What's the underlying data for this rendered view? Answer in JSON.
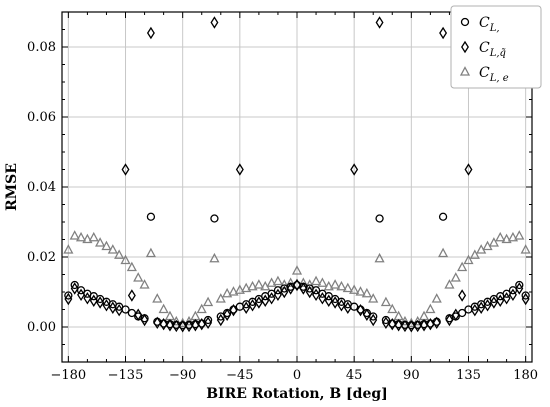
{
  "chart_data": {
    "type": "scatter",
    "xlabel": "BIRE Rotation,  B [deg]",
    "ylabel": "RMSE",
    "xlim": [
      -185,
      185
    ],
    "ylim": [
      -0.01,
      0.09
    ],
    "xticks": [
      -180,
      -135,
      -90,
      -45,
      0,
      45,
      90,
      135,
      180
    ],
    "xtick_labels": [
      "−180",
      "−135",
      "−90",
      "−45",
      "0",
      "45",
      "90",
      "135",
      "180"
    ],
    "yticks": [
      0.0,
      0.02,
      0.04,
      0.06,
      0.08
    ],
    "ytick_labels": [
      "0.00",
      "0.02",
      "0.04",
      "0.06",
      "0.08"
    ],
    "grid": true,
    "legend_position": "top-right",
    "series": [
      {
        "name": "C_L,",
        "legend_main": "C",
        "legend_sub": "L,",
        "marker": "circle",
        "color": "#000000",
        "x": [
          -180,
          -175,
          -170,
          -165,
          -160,
          -155,
          -150,
          -145,
          -140,
          -135,
          -130,
          -125,
          -120,
          -115,
          -110,
          -105,
          -100,
          -95,
          -90,
          -85,
          -80,
          -75,
          -70,
          -65,
          -60,
          -55,
          -50,
          -45,
          -40,
          -35,
          -30,
          -25,
          -20,
          -15,
          -10,
          -5,
          0,
          5,
          10,
          15,
          20,
          25,
          30,
          35,
          40,
          45,
          50,
          55,
          60,
          65,
          70,
          75,
          80,
          85,
          90,
          95,
          100,
          105,
          110,
          115,
          120,
          125,
          130,
          135,
          140,
          145,
          150,
          155,
          160,
          165,
          170,
          175,
          180
        ],
        "y": [
          0.009,
          0.012,
          0.0105,
          0.0095,
          0.0088,
          0.008,
          0.0072,
          0.0065,
          0.0058,
          0.005,
          0.004,
          0.003,
          0.0025,
          0.0315,
          0.0015,
          0.001,
          0.0008,
          0.0006,
          0.0005,
          0.0006,
          0.0008,
          0.001,
          0.002,
          0.031,
          0.003,
          0.004,
          0.005,
          0.0058,
          0.0065,
          0.0072,
          0.008,
          0.0088,
          0.0095,
          0.0105,
          0.011,
          0.0115,
          0.012,
          0.0115,
          0.011,
          0.0105,
          0.0095,
          0.0088,
          0.008,
          0.0072,
          0.0065,
          0.0058,
          0.005,
          0.004,
          0.003,
          0.031,
          0.002,
          0.001,
          0.0008,
          0.0006,
          0.0005,
          0.0006,
          0.0008,
          0.001,
          0.0015,
          0.0315,
          0.0025,
          0.003,
          0.004,
          0.005,
          0.0058,
          0.0065,
          0.0072,
          0.008,
          0.0088,
          0.0095,
          0.0105,
          0.012,
          0.009
        ]
      },
      {
        "name": "C_L,q̃",
        "legend_main": "C",
        "legend_sub": "L,q̃",
        "marker": "diamond",
        "color": "#000000",
        "x": [
          -180,
          -175,
          -170,
          -165,
          -160,
          -155,
          -150,
          -145,
          -140,
          -135,
          -130,
          -125,
          -120,
          -115,
          -110,
          -105,
          -100,
          -95,
          -90,
          -85,
          -80,
          -75,
          -70,
          -65,
          -60,
          -55,
          -50,
          -45,
          -40,
          -35,
          -30,
          -25,
          -20,
          -15,
          -10,
          -5,
          0,
          5,
          10,
          15,
          20,
          25,
          30,
          35,
          40,
          45,
          50,
          55,
          60,
          65,
          70,
          75,
          80,
          85,
          90,
          95,
          100,
          105,
          110,
          115,
          120,
          125,
          130,
          135,
          140,
          145,
          150,
          155,
          160,
          165,
          170,
          175,
          180
        ],
        "y": [
          0.008,
          0.011,
          0.0092,
          0.0082,
          0.0075,
          0.007,
          0.0062,
          0.0055,
          0.0048,
          0.045,
          0.009,
          0.0035,
          0.002,
          0.084,
          0.0012,
          0.0008,
          0.0005,
          0.0003,
          0.0002,
          0.0003,
          0.0005,
          0.0008,
          0.0012,
          0.087,
          0.002,
          0.0035,
          0.0048,
          0.045,
          0.0055,
          0.0062,
          0.007,
          0.0075,
          0.0082,
          0.0092,
          0.01,
          0.011,
          0.012,
          0.011,
          0.01,
          0.0092,
          0.0082,
          0.0075,
          0.007,
          0.0062,
          0.0055,
          0.045,
          0.0048,
          0.0035,
          0.002,
          0.087,
          0.0012,
          0.0008,
          0.0005,
          0.0003,
          0.0002,
          0.0003,
          0.0005,
          0.0008,
          0.0012,
          0.084,
          0.002,
          0.0035,
          0.009,
          0.045,
          0.0048,
          0.0055,
          0.0062,
          0.007,
          0.0075,
          0.0082,
          0.0092,
          0.011,
          0.008
        ]
      },
      {
        "name": "C_L,e",
        "legend_main": "C",
        "legend_sub": "L,  e",
        "marker": "triangle",
        "color": "#808080",
        "x": [
          -180,
          -175,
          -170,
          -165,
          -160,
          -155,
          -150,
          -145,
          -140,
          -135,
          -130,
          -125,
          -120,
          -115,
          -110,
          -105,
          -100,
          -95,
          -90,
          -85,
          -80,
          -75,
          -70,
          -65,
          -60,
          -55,
          -50,
          -45,
          -40,
          -35,
          -30,
          -25,
          -20,
          -15,
          -10,
          -5,
          0,
          5,
          10,
          15,
          20,
          25,
          30,
          35,
          40,
          45,
          50,
          55,
          60,
          65,
          70,
          75,
          80,
          85,
          90,
          95,
          100,
          105,
          110,
          115,
          120,
          125,
          130,
          135,
          140,
          145,
          150,
          155,
          160,
          165,
          170,
          175,
          180
        ],
        "y": [
          0.022,
          0.026,
          0.0255,
          0.025,
          0.0255,
          0.024,
          0.023,
          0.022,
          0.0205,
          0.019,
          0.017,
          0.014,
          0.012,
          0.021,
          0.008,
          0.005,
          0.003,
          0.0015,
          0.001,
          0.0015,
          0.003,
          0.005,
          0.007,
          0.0195,
          0.008,
          0.0095,
          0.01,
          0.0105,
          0.011,
          0.0115,
          0.012,
          0.0115,
          0.0125,
          0.013,
          0.012,
          0.0125,
          0.016,
          0.0125,
          0.012,
          0.013,
          0.0125,
          0.0115,
          0.012,
          0.0115,
          0.011,
          0.0105,
          0.01,
          0.0095,
          0.008,
          0.0195,
          0.007,
          0.005,
          0.003,
          0.0015,
          0.001,
          0.0015,
          0.003,
          0.005,
          0.008,
          0.021,
          0.012,
          0.014,
          0.017,
          0.019,
          0.0205,
          0.022,
          0.023,
          0.024,
          0.0255,
          0.025,
          0.0255,
          0.026,
          0.022
        ]
      }
    ]
  }
}
